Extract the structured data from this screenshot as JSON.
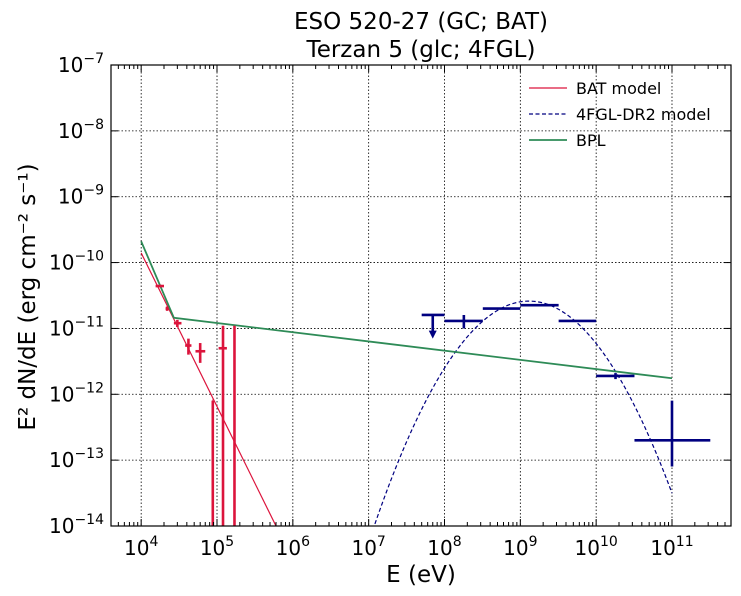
{
  "chart_data": {
    "type": "scatter",
    "title_lines": [
      "ESO 520-27 (GC; BAT)",
      "Terzan 5 (glc; 4FGL)"
    ],
    "xlabel": "E (eV)",
    "ylabel": "E² dN/dE (erg cm⁻² s⁻¹)",
    "xscale": "log",
    "yscale": "log",
    "xlim": [
      4000,
      600000000000
    ],
    "ylim": [
      1e-14,
      1e-07
    ],
    "grid": true,
    "legend_position": "top-right",
    "x_ticks": [
      {
        "value": 10000,
        "mantissa": "10",
        "exp": "4"
      },
      {
        "value": 100000,
        "mantissa": "10",
        "exp": "5"
      },
      {
        "value": 1000000,
        "mantissa": "10",
        "exp": "6"
      },
      {
        "value": 10000000,
        "mantissa": "10",
        "exp": "7"
      },
      {
        "value": 100000000,
        "mantissa": "10",
        "exp": "8"
      },
      {
        "value": 1000000000,
        "mantissa": "10",
        "exp": "9"
      },
      {
        "value": 10000000000,
        "mantissa": "10",
        "exp": "10"
      },
      {
        "value": 100000000000,
        "mantissa": "10",
        "exp": "11"
      }
    ],
    "y_ticks": [
      {
        "value": 1e-14,
        "mantissa": "10",
        "exp": "−14"
      },
      {
        "value": 1e-13,
        "mantissa": "10",
        "exp": "−13"
      },
      {
        "value": 1e-12,
        "mantissa": "10",
        "exp": "−12"
      },
      {
        "value": 1e-11,
        "mantissa": "10",
        "exp": "−11"
      },
      {
        "value": 1e-10,
        "mantissa": "10",
        "exp": "−10"
      },
      {
        "value": 1e-09,
        "mantissa": "10",
        "exp": "−9"
      },
      {
        "value": 1e-08,
        "mantissa": "10",
        "exp": "−8"
      },
      {
        "value": 1e-07,
        "mantissa": "10",
        "exp": "−7"
      }
    ],
    "legend": [
      {
        "label": "BAT model",
        "color": "#dc143c",
        "dash": "solid"
      },
      {
        "label": "4FGL-DR2 model",
        "color": "#000080",
        "dash": "dashed"
      },
      {
        "label": "BPL",
        "color": "#2e8b57",
        "dash": "solid"
      }
    ],
    "lines": [
      {
        "name": "BAT model",
        "color": "#dc143c",
        "dash": "solid",
        "points": [
          [
            10000,
            1.4e-10
          ],
          [
            600000,
            1e-14
          ]
        ]
      },
      {
        "name": "4FGL-DR2 model",
        "color": "#000080",
        "dash": "dashed",
        "function": "logparabola",
        "peak_e": 1300000000,
        "peak_flux": 2.6e-11,
        "curvature": 0.82,
        "x_range": [
          10000000,
          100000000000
        ]
      },
      {
        "name": "BPL",
        "color": "#2e8b57",
        "dash": "solid",
        "points": [
          [
            10000,
            2.1e-10
          ],
          [
            27000,
            1.45e-11
          ],
          [
            100000000000,
            1.75e-12
          ]
        ]
      }
    ],
    "bat_points": [
      {
        "x": 17800,
        "y": 4.4e-11,
        "xerr": [
          15500,
          20000
        ],
        "yerr": [
          4.2e-11,
          4.6e-11
        ]
      },
      {
        "x": 22000,
        "y": 2e-11,
        "xerr": [
          21000,
          23000
        ],
        "yerr": [
          1.85e-11,
          2.15e-11
        ]
      },
      {
        "x": 30000,
        "y": 1.2e-11,
        "xerr": [
          27000,
          34000
        ],
        "yerr": [
          1.05e-11,
          1.35e-11
        ]
      },
      {
        "x": 42000,
        "y": 5.5e-12,
        "xerr": [
          38000,
          46000
        ],
        "yerr": [
          4e-12,
          7e-12
        ]
      },
      {
        "x": 60000,
        "y": 4.5e-12,
        "xerr": [
          52000,
          70000
        ],
        "yerr": [
          3e-12,
          6e-12
        ]
      },
      {
        "x": 88000,
        "y": 8e-13,
        "xerr": [
          87000,
          89000
        ],
        "yerr": [
          1e-14,
          8e-13
        ]
      },
      {
        "x": 120000,
        "y": 5e-12,
        "xerr": [
          105000,
          135000
        ],
        "yerr": [
          1e-14,
          1.1e-11
        ]
      },
      {
        "x": 170000,
        "y": 5e-12,
        "xerr": [
          168000,
          172000
        ],
        "yerr": [
          1e-14,
          1.1e-11
        ]
      }
    ],
    "fermi_points": [
      {
        "x": 180000000,
        "y": 1.3e-11,
        "xerr": [
          100000000,
          320000000
        ],
        "yerr": [
          1e-11,
          1.6e-11
        ]
      },
      {
        "x": 560000000,
        "y": 2e-11,
        "xerr": [
          320000000,
          1000000000
        ],
        "yerr": [
          2e-11,
          2e-11
        ]
      },
      {
        "x": 1800000000,
        "y": 2.25e-11,
        "xerr": [
          1000000000,
          3200000000
        ],
        "yerr": [
          2.25e-11,
          2.25e-11
        ]
      },
      {
        "x": 5600000000,
        "y": 1.3e-11,
        "xerr": [
          3200000000,
          10000000000
        ],
        "yerr": [
          1.3e-11,
          1.3e-11
        ]
      },
      {
        "x": 18000000000,
        "y": 1.9e-12,
        "xerr": [
          10000000000,
          32000000000
        ],
        "yerr": [
          1.7e-12,
          2.1e-12
        ]
      },
      {
        "x": 100000000000,
        "y": 2e-13,
        "xerr": [
          32000000000,
          320000000000
        ],
        "yerr": [
          8e-14,
          8e-13
        ]
      }
    ],
    "fermi_upper_limits": [
      {
        "x": 70000000,
        "y": 1.6e-11,
        "xerr": [
          50000000,
          100000000
        ],
        "arrow_to": 7.5e-12
      }
    ]
  }
}
